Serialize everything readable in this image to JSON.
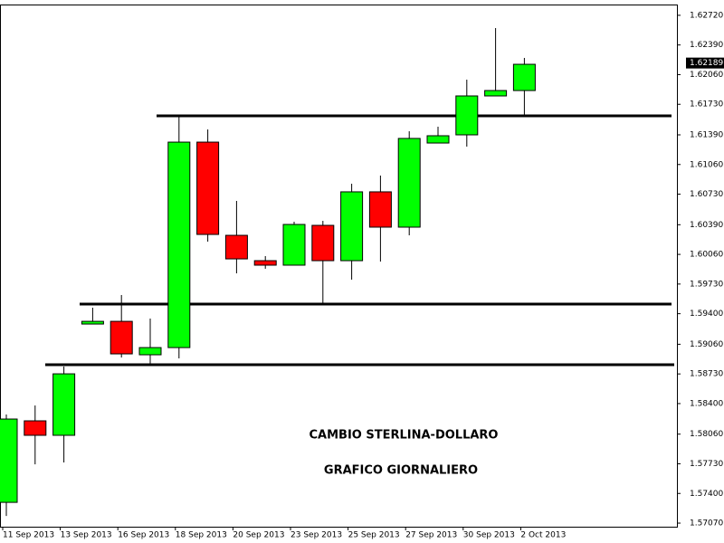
{
  "chart_data": {
    "type": "candlestick",
    "categories": [
      "11 Sep 2013",
      null,
      "13 Sep 2013",
      null,
      "16 Sep 2013",
      null,
      "18 Sep 2013",
      null,
      "20 Sep 2013",
      null,
      "23 Sep 2013",
      null,
      "25 Sep 2013",
      null,
      "27 Sep 2013",
      null,
      "30 Sep 2013",
      null,
      "2 Oct 2013"
    ],
    "open": [
      1.57301,
      1.58208,
      1.58047,
      1.59285,
      1.59315,
      1.58943,
      1.59023,
      1.61309,
      1.60272,
      1.5999,
      1.5994,
      1.60383,
      1.5999,
      1.60756,
      1.60363,
      1.61299,
      1.6139,
      1.61823,
      1.61883
    ],
    "high": [
      1.58278,
      1.58379,
      1.58812,
      1.59467,
      1.59608,
      1.59346,
      1.61601,
      1.6145,
      1.60655,
      1.60041,
      1.60423,
      1.60433,
      1.60846,
      1.60937,
      1.6143,
      1.61481,
      1.62004,
      1.62578,
      1.62246
    ],
    "low": [
      1.5715,
      1.57724,
      1.57745,
      1.59285,
      1.58913,
      1.58822,
      1.58903,
      1.60202,
      1.59849,
      1.599,
      1.5994,
      1.59507,
      1.59779,
      1.5998,
      1.60272,
      1.61299,
      1.61259,
      1.61823,
      1.61611
    ],
    "close": [
      1.58228,
      1.58047,
      1.58731,
      1.59315,
      1.58953,
      1.59023,
      1.61309,
      1.60282,
      1.6001,
      1.5994,
      1.60393,
      1.5999,
      1.60756,
      1.60363,
      1.6135,
      1.6138,
      1.61823,
      1.61883,
      1.62175
    ],
    "up_color": "#00ff00",
    "down_color": "#ff0000",
    "horizontal_lines": [
      1.61601,
      1.59507,
      1.58832
    ],
    "last_price": 1.62189,
    "annotations": [
      "CAMBIO STERLINA-DOLLARO",
      "GRAFICO GIORNALIERO"
    ],
    "ylim": [
      1.5703,
      1.6284
    ],
    "yticks": [
      {
        "value": 1.6272,
        "label": "1.62720"
      },
      {
        "value": 1.6239,
        "label": "1.62390"
      },
      {
        "value": 1.6206,
        "label": "1.62060"
      },
      {
        "value": 1.6173,
        "label": "1.61730"
      },
      {
        "value": 1.6139,
        "label": "1.61390"
      },
      {
        "value": 1.6106,
        "label": "1.61060"
      },
      {
        "value": 1.6073,
        "label": "1.60730"
      },
      {
        "value": 1.6039,
        "label": "1.60390"
      },
      {
        "value": 1.6006,
        "label": "1.60060"
      },
      {
        "value": 1.5973,
        "label": "1.59730"
      },
      {
        "value": 1.594,
        "label": "1.59400"
      },
      {
        "value": 1.5906,
        "label": "1.59060"
      },
      {
        "value": 1.5873,
        "label": "1.58730"
      },
      {
        "value": 1.584,
        "label": "1.58400"
      },
      {
        "value": 1.5806,
        "label": "1.58060"
      },
      {
        "value": 1.5773,
        "label": "1.57730"
      },
      {
        "value": 1.574,
        "label": "1.57400"
      },
      {
        "value": 1.5707,
        "label": "1.57070"
      }
    ]
  }
}
